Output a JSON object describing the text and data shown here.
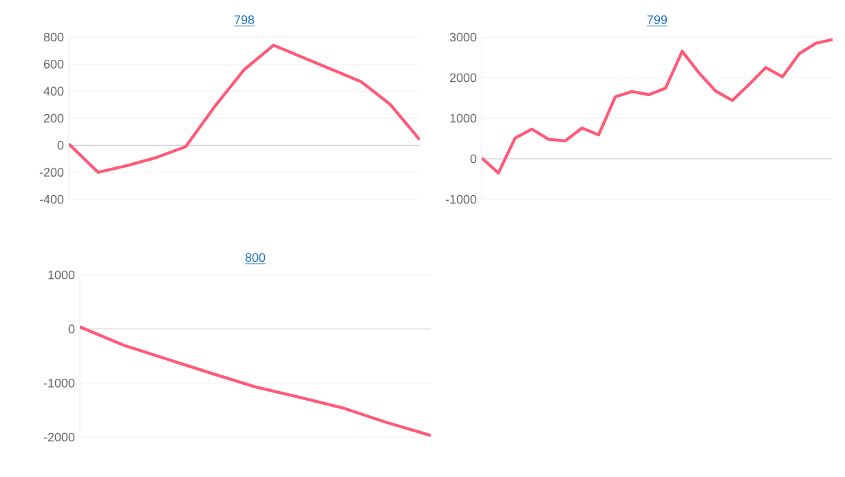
{
  "chart_data": [
    {
      "type": "line",
      "title": "798",
      "categories": [
        null,
        null,
        null,
        null,
        null,
        null,
        null,
        null,
        null,
        null,
        null,
        null,
        null
      ],
      "series": [
        {
          "color": "#ff5a77",
          "values": [
            10,
            -200,
            -150,
            -90,
            -10,
            290,
            560,
            740,
            650,
            560,
            470,
            300,
            40
          ]
        }
      ],
      "ylim": [
        -400,
        800
      ],
      "yticks": [
        -400,
        -200,
        0,
        200,
        400,
        600,
        800
      ],
      "grid": "y"
    },
    {
      "type": "line",
      "title": "799",
      "categories": [
        null,
        null,
        null,
        null,
        null,
        null,
        null,
        null,
        null,
        null,
        null,
        null,
        null,
        null,
        null,
        null,
        null,
        null,
        null,
        null,
        null,
        null
      ],
      "series": [
        {
          "color": "#ff5a77",
          "values": [
            20,
            -350,
            510,
            730,
            480,
            440,
            760,
            590,
            1530,
            1660,
            1580,
            1740,
            2650,
            2120,
            1670,
            1440,
            1830,
            2250,
            2020,
            2590,
            2850,
            2940
          ]
        }
      ],
      "ylim": [
        -1000,
        3000
      ],
      "yticks": [
        -1000,
        0,
        1000,
        2000,
        3000
      ],
      "grid": "y"
    },
    {
      "type": "line",
      "title": "800",
      "categories": [
        null,
        null,
        null,
        null,
        null,
        null,
        null,
        null,
        null
      ],
      "series": [
        {
          "color": "#ff5a77",
          "values": [
            40,
            -300,
            -560,
            -820,
            -1070,
            -1260,
            -1460,
            -1730,
            -1970
          ]
        }
      ],
      "ylim": [
        -2000,
        1000
      ],
      "yticks": [
        -2000,
        -1000,
        0,
        1000
      ],
      "grid": "y"
    }
  ]
}
